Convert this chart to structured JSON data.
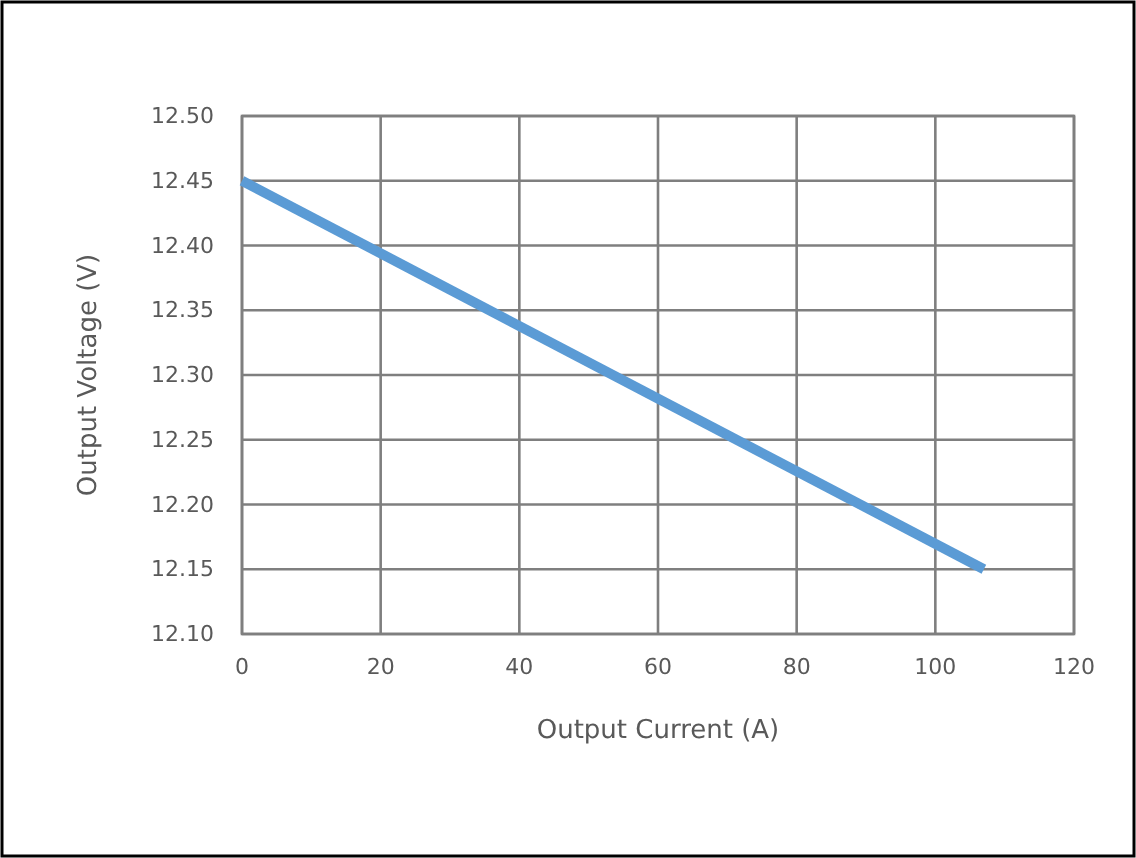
{
  "chart_data": {
    "type": "line",
    "xlabel": "Output Current (A)",
    "ylabel": "Output Voltage (V)",
    "x": [
      0,
      107
    ],
    "series": [
      {
        "color": "#5b9bd5",
        "values": [
          12.45,
          12.15
        ]
      }
    ],
    "xlim": [
      0,
      120
    ],
    "xticks": [
      0,
      20,
      40,
      60,
      80,
      100,
      120
    ],
    "ylim": [
      12.1,
      12.5
    ],
    "yticks": [
      {
        "value": 12.1,
        "label": "12.10"
      },
      {
        "value": 12.15,
        "label": "12.15"
      },
      {
        "value": 12.2,
        "label": "12.20"
      },
      {
        "value": 12.25,
        "label": "12.25"
      },
      {
        "value": 12.3,
        "label": "12.30"
      },
      {
        "value": 12.35,
        "label": "12.35"
      },
      {
        "value": 12.4,
        "label": "12.40"
      },
      {
        "value": 12.45,
        "label": "12.45"
      },
      {
        "value": 12.5,
        "label": "12.50"
      }
    ],
    "grid": true,
    "marker": "none",
    "line_style": "solid"
  }
}
